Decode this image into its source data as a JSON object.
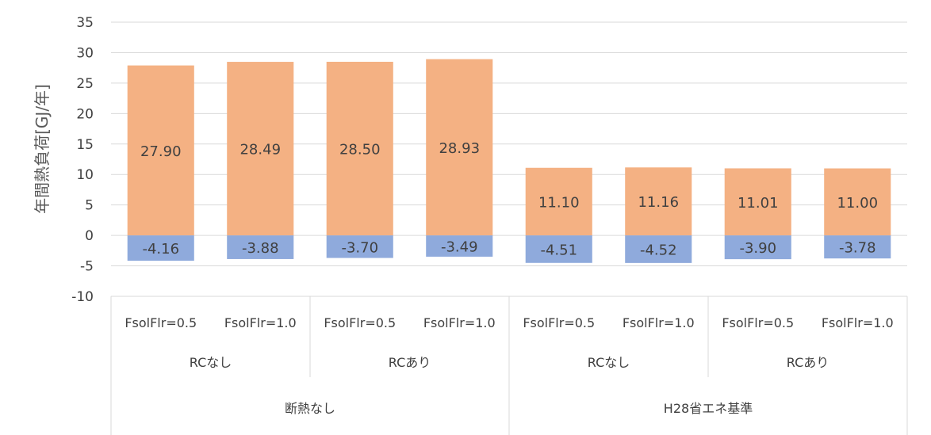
{
  "chart_data": {
    "type": "bar",
    "stacked": true,
    "ylabel": "年間熱負荷[GJ/年]",
    "ylim": [
      -10,
      35
    ],
    "yticks": [
      35,
      30,
      25,
      20,
      15,
      10,
      5,
      0,
      -5,
      -10
    ],
    "grid": true,
    "categories_level1": [
      "FsolFlr=0.5",
      "FsolFlr=1.0",
      "FsolFlr=0.5",
      "FsolFlr=1.0",
      "FsolFlr=0.5",
      "FsolFlr=1.0",
      "FsolFlr=0.5",
      "FsolFlr=1.0"
    ],
    "categories_level2": [
      "RCなし",
      "RCあり",
      "RCなし",
      "RCあり"
    ],
    "categories_level3": [
      "断熱なし",
      "H28省エネ基準"
    ],
    "series": [
      {
        "color": "#F4B183",
        "values": [
          27.9,
          28.49,
          28.5,
          28.93,
          11.1,
          11.16,
          11.01,
          11.0
        ],
        "labels": [
          "27.90",
          "28.49",
          "28.50",
          "28.93",
          "11.10",
          "11.16",
          "11.01",
          "11.00"
        ]
      },
      {
        "color": "#8FAADC",
        "values": [
          -4.16,
          -3.88,
          -3.7,
          -3.49,
          -4.51,
          -4.52,
          -3.9,
          -3.78
        ],
        "labels": [
          "-4.16",
          "-3.88",
          "-3.70",
          "-3.49",
          "-4.51",
          "-4.52",
          "-3.90",
          "-3.78"
        ]
      }
    ]
  }
}
